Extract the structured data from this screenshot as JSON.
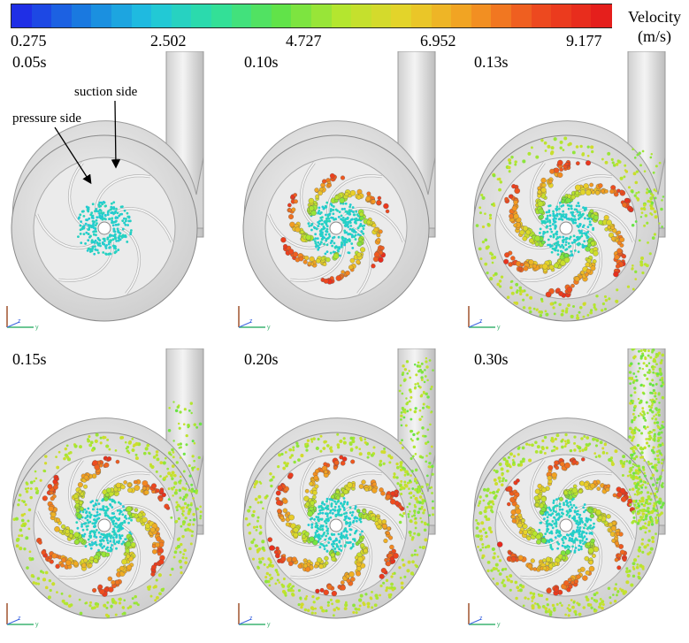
{
  "legend": {
    "title_line1": "Velocity",
    "title_line2": "(m/s)",
    "min": 0.275,
    "max": 9.177,
    "ticks": [
      "0.275",
      "2.502",
      "4.727",
      "6.952",
      "9.177"
    ],
    "colors": [
      "#1f2fe6",
      "#1a7fe0",
      "#20c4e0",
      "#2ee0a0",
      "#5ee34a",
      "#b7e62e",
      "#e8d22a",
      "#f39a22",
      "#ee4c1f",
      "#e51f1c"
    ]
  },
  "annotations": {
    "suction": "suction side",
    "pressure": "pressure side"
  },
  "panels": [
    {
      "time": "0.05s",
      "stage": 0
    },
    {
      "time": "0.10s",
      "stage": 1
    },
    {
      "time": "0.13s",
      "stage": 2
    },
    {
      "time": "0.15s",
      "stage": 3
    },
    {
      "time": "0.20s",
      "stage": 4
    },
    {
      "time": "0.30s",
      "stage": 5
    }
  ],
  "axis_labels": {
    "z": "z",
    "y": "y"
  }
}
